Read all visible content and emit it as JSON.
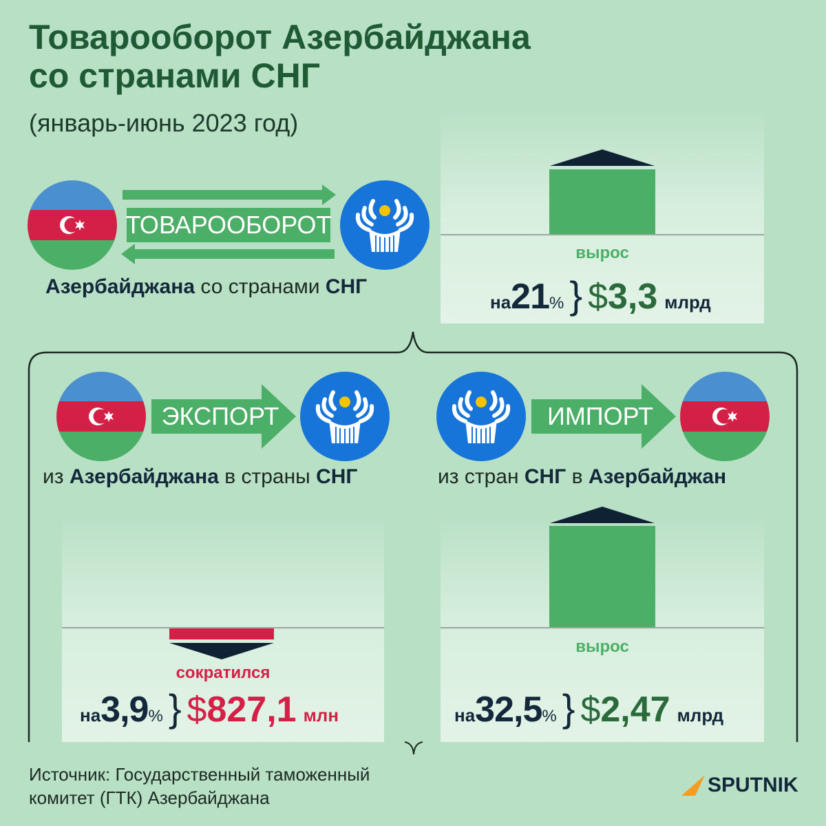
{
  "header": {
    "title_line1": "Товарооборот Азербайджана",
    "title_line2": "со странами СНГ",
    "period": "(январь-июнь 2023 год)"
  },
  "turnover": {
    "label": "ТОВАРООБОРОТ",
    "desc_country": "Азербайджана",
    "desc_mid": "со странами",
    "desc_cis": "СНГ",
    "change_word": "вырос",
    "prefix": "на",
    "percent": "21",
    "percent_sign": "%",
    "currency": "$",
    "amount": "3,3",
    "unit": "млрд"
  },
  "export": {
    "label": "ЭКСПОРТ",
    "desc_from": "из",
    "desc_country": "Азербайджана",
    "desc_to": "в страны",
    "desc_cis": "СНГ",
    "change_word": "сократился",
    "prefix": "на",
    "percent": "3,9",
    "percent_sign": "%",
    "currency": "$",
    "amount": "827,1",
    "unit": "млн"
  },
  "import": {
    "label": "ИМПОРТ",
    "desc_from": "из стран",
    "desc_cis": "СНГ",
    "desc_to": "в",
    "desc_country": "Азербайджан",
    "change_word": "вырос",
    "prefix": "на",
    "percent": "32,5",
    "percent_sign": "%",
    "currency": "$",
    "amount": "2,47",
    "unit": "млрд"
  },
  "source": {
    "line1": "Источник: Государственный таможенный",
    "line2": "комитет (ГТК) Азербайджана"
  },
  "brand": {
    "name": "SPUTNIK"
  },
  "colors": {
    "background": "#b8e0c5",
    "title": "#1e5a34",
    "accent_green": "#4caf67",
    "accent_red": "#d42046",
    "cis_blue": "#1774d8",
    "flag_blue": "#4a8fcf",
    "dark": "#13283a"
  }
}
